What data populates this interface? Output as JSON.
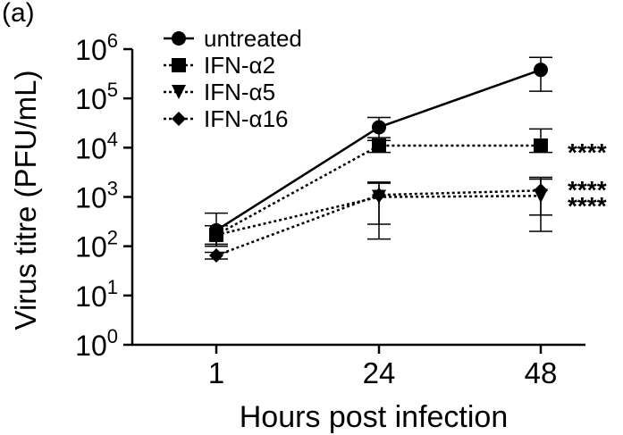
{
  "panel_label": "(a)",
  "chart_data": {
    "type": "line",
    "title": "",
    "xlabel": "Hours post infection",
    "ylabel": "Virus titre (PFU/mL)",
    "categories": [
      "1",
      "24",
      "48"
    ],
    "y_scale": "log10",
    "ylim": [
      1,
      1000000
    ],
    "y_ticks": [
      {
        "value": 1,
        "base": "10",
        "exp": "0"
      },
      {
        "value": 10,
        "base": "10",
        "exp": "1"
      },
      {
        "value": 100,
        "base": "10",
        "exp": "2"
      },
      {
        "value": 1000,
        "base": "10",
        "exp": "3"
      },
      {
        "value": 10000,
        "base": "10",
        "exp": "4"
      },
      {
        "value": 100000,
        "base": "10",
        "exp": "5"
      },
      {
        "value": 1000000,
        "base": "10",
        "exp": "6"
      }
    ],
    "grid": false,
    "legend_position": "top-left",
    "series": [
      {
        "name": "untreated",
        "marker": "circle",
        "line": "solid",
        "values": [
          210,
          26000,
          380000
        ],
        "err_low": [
          110,
          16000,
          140000
        ],
        "err_high": [
          470,
          41000,
          680000
        ]
      },
      {
        "name": "IFN-α2",
        "marker": "square",
        "line": "dotted",
        "values": [
          170,
          11000,
          11000
        ],
        "err_low": [
          100,
          8000,
          8000
        ],
        "err_high": [
          260,
          14000,
          24000
        ]
      },
      {
        "name": "IFN-α5",
        "marker": "triangle-down",
        "line": "dotted",
        "values": [
          170,
          1000,
          1050
        ],
        "err_low": [
          100,
          280,
          430
        ],
        "err_high": [
          260,
          1900,
          2300
        ]
      },
      {
        "name": "IFN-α16",
        "marker": "diamond",
        "line": "dotted",
        "values": [
          65,
          1100,
          1350
        ],
        "err_low": [
          55,
          140,
          200
        ],
        "err_high": [
          75,
          2000,
          2500
        ]
      }
    ],
    "annotations": [
      {
        "text": "****",
        "x": "48",
        "y": 11000
      },
      {
        "text": "****",
        "x": "48",
        "y": 1900
      },
      {
        "text": "****",
        "x": "48",
        "y": 900
      }
    ]
  }
}
